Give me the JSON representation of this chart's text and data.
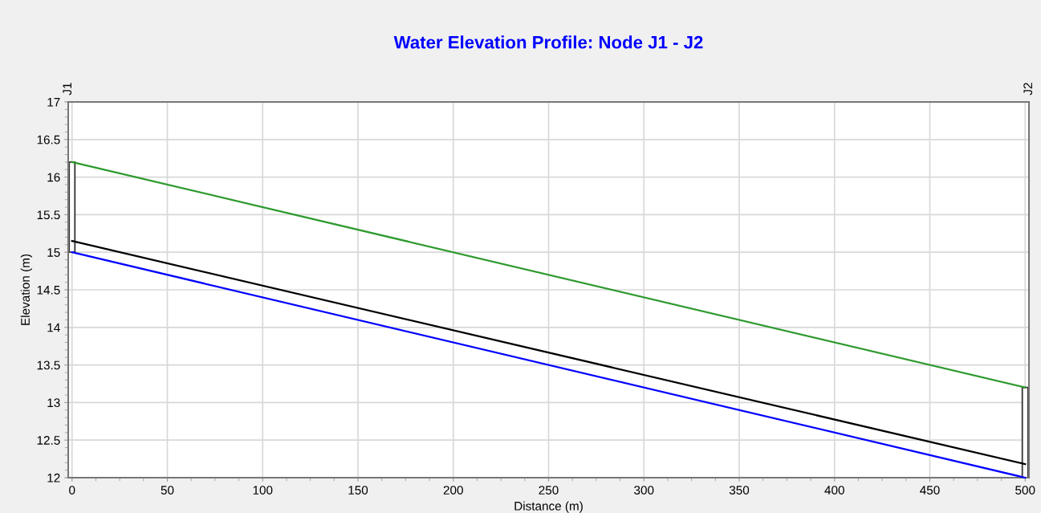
{
  "chart_data": {
    "type": "line",
    "title": "Water Elevation Profile: Node J1 - J2",
    "xlabel": "Distance (m)",
    "ylabel": "Elevation (m)",
    "x": [
      0,
      500
    ],
    "series": [
      {
        "type": "line",
        "color": "#0000ff",
        "values": [
          15.0,
          12.0
        ]
      },
      {
        "type": "line",
        "color": "#000000",
        "values": [
          15.15,
          12.18
        ]
      },
      {
        "color": "#2e9a2e",
        "values": [
          16.2,
          13.2
        ]
      },
      {
        "type": "bar",
        "color": "#ffffff",
        "x": [
          0,
          500
        ],
        "base": [
          15.0,
          12.0
        ],
        "values": [
          1.2,
          1.2
        ]
      }
    ],
    "xlim": [
      -2,
      502
    ],
    "xticks": [
      0,
      50,
      100,
      150,
      200,
      250,
      300,
      350,
      400,
      450,
      500
    ],
    "ylim": [
      12,
      17
    ],
    "yticks": [
      12,
      12.5,
      13,
      13.5,
      14,
      14.5,
      15,
      15.5,
      16,
      16.5,
      17
    ],
    "annotations": [
      "J1",
      "J2"
    ],
    "grid": true,
    "legend": false
  }
}
